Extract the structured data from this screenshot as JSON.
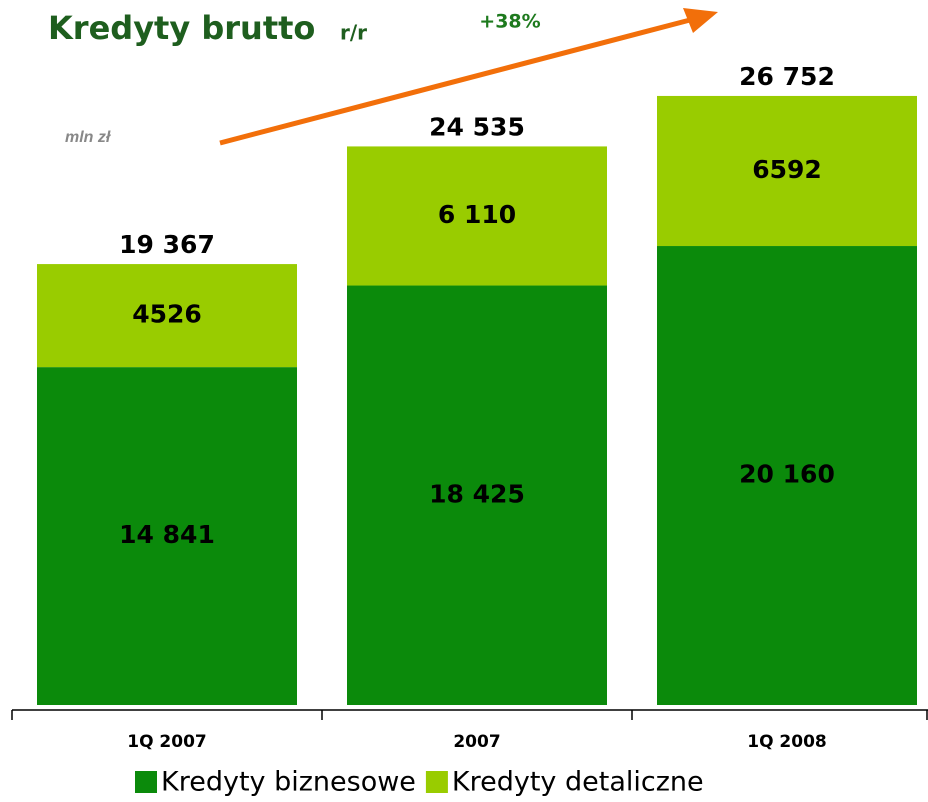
{
  "chart_data": {
    "type": "stacked_bar",
    "title": "Kredyty brutto",
    "subtitle": "r/r",
    "annotation": "+38%",
    "unit_label": "mln zł",
    "categories": [
      "1Q 2007",
      "2007",
      "1Q 2008"
    ],
    "series": [
      {
        "name": "Kredyty biznesowe",
        "color": "#0b8a0b",
        "values": [
          14841,
          18425,
          20160
        ],
        "value_labels": [
          "14 841",
          "18 425",
          "20 160"
        ]
      },
      {
        "name": "Kredyty detaliczne",
        "color": "#99cc00",
        "values": [
          4526,
          6110,
          6592
        ],
        "value_labels": [
          "4526",
          "6 110",
          "6592"
        ]
      }
    ],
    "totals": [
      19367,
      24535,
      26752
    ],
    "total_labels": [
      "19 367",
      "24 535",
      "26 752"
    ],
    "ylim": [
      0,
      30000
    ]
  }
}
